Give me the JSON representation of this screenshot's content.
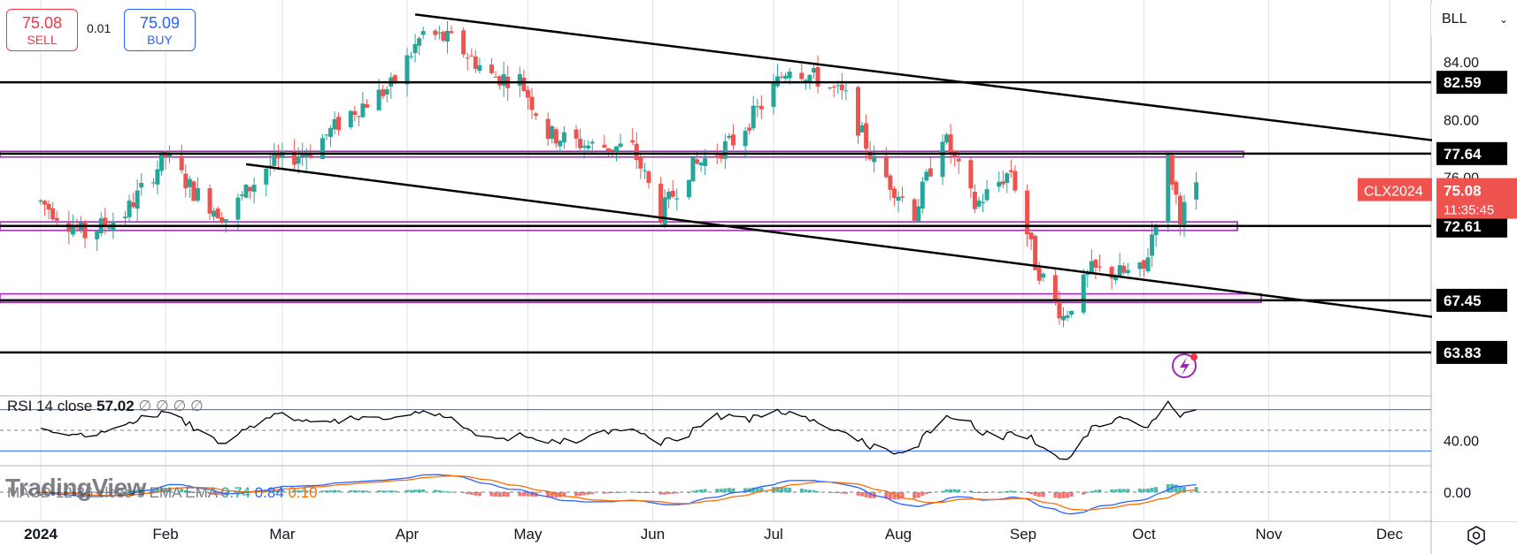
{
  "trade": {
    "sell_price": "75.08",
    "sell_label": "SELL",
    "spread": "0.01",
    "buy_price": "75.09",
    "buy_label": "BUY"
  },
  "symbol_select": {
    "value": "BLL",
    "icon": "chevron-down-icon"
  },
  "price_axis_ticks": [
    "84.00",
    "80.00",
    "76.00"
  ],
  "level_labels": [
    "82.59",
    "77.64",
    "72.61",
    "67.45",
    "63.83"
  ],
  "current_price": {
    "symbol": "CLX2024",
    "price": "75.08",
    "countdown": "11:35:45"
  },
  "rsi": {
    "legend_label": "RSI 14 close",
    "value": "57.02",
    "extras": "∅ ∅ ∅ ∅",
    "axis_tick": "40.00"
  },
  "macd": {
    "legend_label": "MACD 12 26 close 9 EMA EMA",
    "values": [
      "0.74",
      "0.84",
      "0.10"
    ],
    "axis_tick": "0.00"
  },
  "time_axis": [
    "2024",
    "Feb",
    "Mar",
    "Apr",
    "May",
    "Jun",
    "Jul",
    "Aug",
    "Sep",
    "Oct",
    "Nov",
    "Dec"
  ],
  "watermark": "TradingView",
  "colors": {
    "up": "#26a69a",
    "down": "#ef5350",
    "sell": "#f23645",
    "buy": "#2962ff",
    "level_line": "#000000",
    "zone": "#9c27b0",
    "rsi_line": "#000000",
    "macd_line": "#2962ff",
    "signal_line": "#ff6d00",
    "price_tag": "#ef5350"
  },
  "chart_data": {
    "type": "candlestick",
    "symbol": "CLX2024",
    "x_range": [
      "2024-01-01",
      "2024-12-31"
    ],
    "y_range": [
      61,
      88
    ],
    "grid": true,
    "anchors": [
      [
        "2024-01-01",
        74.3
      ],
      [
        "2024-01-12",
        72.0
      ],
      [
        "2024-01-22",
        73.5
      ],
      [
        "2024-02-01",
        77.5
      ],
      [
        "2024-02-08",
        75.0
      ],
      [
        "2024-02-16",
        73.2
      ],
      [
        "2024-02-26",
        76.7
      ],
      [
        "2024-03-08",
        77.9
      ],
      [
        "2024-03-18",
        80.5
      ],
      [
        "2024-03-28",
        82.3
      ],
      [
        "2024-04-05",
        86.0
      ],
      [
        "2024-04-12",
        85.5
      ],
      [
        "2024-04-22",
        83.0
      ],
      [
        "2024-04-29",
        82.8
      ],
      [
        "2024-05-06",
        79.0
      ],
      [
        "2024-05-16",
        78.2
      ],
      [
        "2024-05-27",
        78.0
      ],
      [
        "2024-06-03",
        73.5
      ],
      [
        "2024-06-10",
        76.5
      ],
      [
        "2024-06-21",
        78.5
      ],
      [
        "2024-06-28",
        81.0
      ],
      [
        "2024-07-05",
        83.8
      ],
      [
        "2024-07-12",
        82.8
      ],
      [
        "2024-07-19",
        81.5
      ],
      [
        "2024-07-26",
        77.0
      ],
      [
        "2024-08-05",
        73.5
      ],
      [
        "2024-08-12",
        79.0
      ],
      [
        "2024-08-20",
        74.0
      ],
      [
        "2024-08-29",
        76.5
      ],
      [
        "2024-09-04",
        70.0
      ],
      [
        "2024-09-11",
        66.3
      ],
      [
        "2024-09-18",
        69.5
      ],
      [
        "2024-09-26",
        69.3
      ],
      [
        "2024-10-01",
        69.5
      ],
      [
        "2024-10-07",
        77.1
      ],
      [
        "2024-10-10",
        73.4
      ],
      [
        "2024-10-14",
        75.1
      ]
    ],
    "horizontal_levels": [
      82.59,
      77.64,
      72.61,
      67.45,
      63.83
    ],
    "zones": [
      {
        "from": 77.4,
        "to": 77.8
      },
      {
        "from": 72.3,
        "to": 72.9
      },
      {
        "from": 67.3,
        "to": 67.9
      }
    ],
    "trendlines": [
      {
        "from": [
          "2024-04-03",
          87.3
        ],
        "to": [
          "2024-12-31",
          77.9
        ]
      },
      {
        "from": [
          "2024-02-21",
          76.9
        ],
        "to": [
          "2024-12-31",
          65.6
        ]
      }
    ],
    "rsi": {
      "value": 57.02,
      "upper": 70,
      "middle": 50,
      "lower": 30,
      "ticks": [
        40
      ]
    },
    "macd": {
      "macd": 0.84,
      "signal": 0.74,
      "histogram": 0.1
    }
  }
}
